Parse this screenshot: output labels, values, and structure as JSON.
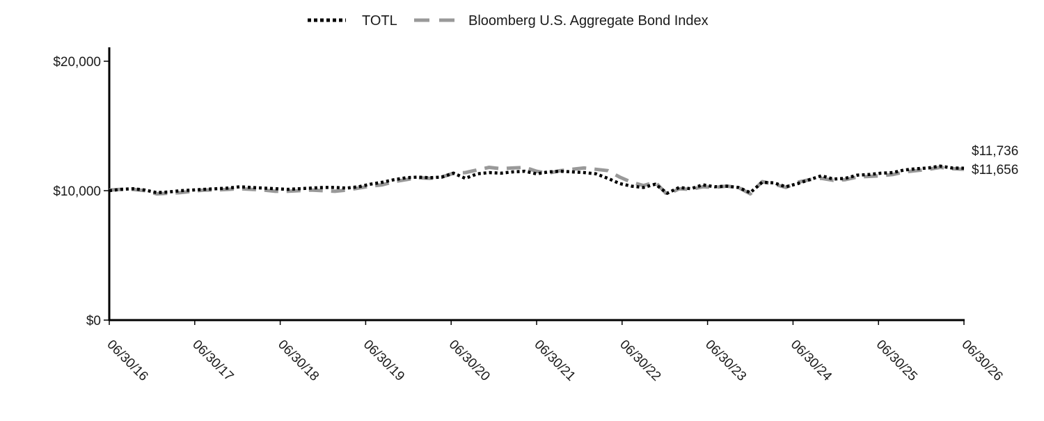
{
  "chart_data": {
    "type": "line",
    "title": "",
    "xlabel": "",
    "ylabel": "",
    "ylim": [
      0,
      20000
    ],
    "y_ticks": [
      {
        "value": 0,
        "label": "$0"
      },
      {
        "value": 10000,
        "label": "$10,000"
      },
      {
        "value": 20000,
        "label": "$20,000"
      }
    ],
    "x_tick_labels": [
      "06/30/16",
      "06/30/17",
      "06/30/18",
      "06/30/19",
      "06/30/20",
      "06/30/21",
      "06/30/22",
      "06/30/23",
      "06/30/24",
      "06/30/25",
      "06/30/26"
    ],
    "legend_position": "top-center",
    "grid": false,
    "series": [
      {
        "name": "TOTL",
        "style": "dotted",
        "color": "#000000",
        "end_label": "$11,736",
        "values": [
          10000,
          10100,
          10150,
          10050,
          9850,
          9900,
          10000,
          10050,
          10100,
          10150,
          10200,
          10300,
          10250,
          10200,
          10150,
          10100,
          10150,
          10200,
          10250,
          10250,
          10200,
          10300,
          10500,
          10650,
          10850,
          11000,
          11050,
          11000,
          11050,
          11350,
          10950,
          11300,
          11400,
          11350,
          11450,
          11500,
          11300,
          11450,
          11500,
          11450,
          11400,
          11300,
          10950,
          10550,
          10350,
          10250,
          10500,
          9800,
          10250,
          10150,
          10450,
          10300,
          10350,
          10250,
          9850,
          10650,
          10600,
          10300,
          10550,
          10850,
          11150,
          10900,
          10950,
          11200,
          11250,
          11350,
          11400,
          11600,
          11700,
          11750,
          11900,
          11750,
          11736
        ]
      },
      {
        "name": "Bloomberg U.S. Aggregate Bond Index",
        "style": "dashed",
        "color": "#999999",
        "end_label": "$11,656",
        "values": [
          10050,
          10100,
          10100,
          10000,
          9750,
          9800,
          9850,
          9950,
          10050,
          10050,
          10100,
          10150,
          10100,
          10050,
          9950,
          9950,
          10000,
          10050,
          10000,
          9950,
          10050,
          10200,
          10350,
          10450,
          10700,
          10850,
          11000,
          10950,
          11050,
          11350,
          11400,
          11600,
          11800,
          11700,
          11750,
          11800,
          11500,
          11350,
          11550,
          11650,
          11750,
          11650,
          11550,
          11050,
          10650,
          10400,
          10650,
          9700,
          10150,
          10100,
          10300,
          10250,
          10350,
          10250,
          9750,
          10700,
          10500,
          10250,
          10650,
          10850,
          10950,
          10800,
          10850,
          11050,
          11100,
          11150,
          11250,
          11450,
          11550,
          11650,
          11800,
          11700,
          11656
        ]
      }
    ]
  }
}
